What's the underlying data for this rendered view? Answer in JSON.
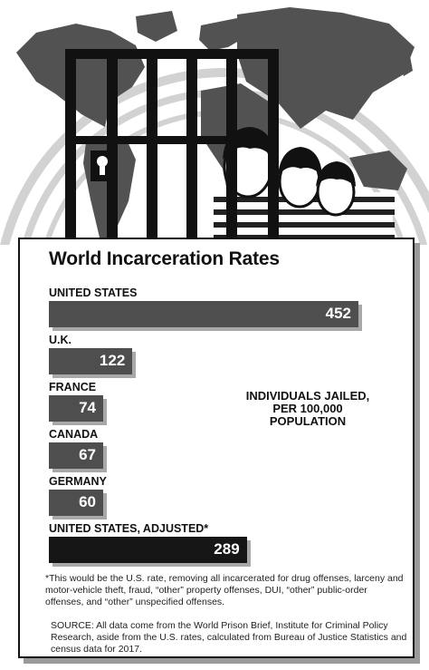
{
  "chart_data": {
    "type": "bar",
    "orientation": "horizontal",
    "title": "World Incarceration Rates",
    "unit_note": "INDIVIDUALS JAILED, PER 100,000 POPULATION",
    "categories": [
      "UNITED STATES",
      "U.K.",
      "FRANCE",
      "CANADA",
      "GERMANY",
      "UNITED STATES, ADJUSTED*"
    ],
    "values": [
      452,
      122,
      74,
      67,
      60,
      289
    ],
    "highlight_index": 5,
    "colors": {
      "bar": "#4e4e4e",
      "highlight": "#161616",
      "shadow": "#a8a8a8"
    },
    "legend": "none",
    "grid": false,
    "xlim": [
      0,
      452
    ]
  },
  "footnote": "*This would be the U.S. rate, removing all incarcerated for drug offenses, larceny and motor-vehicle theft, fraud, “other” property offenses, DUI, “other” public-order offenses, and “other” unspecified offenses.",
  "source": "SOURCE: All data come from the World Prison Brief, Institute for Criminal Policy Research, aside from the U.S. rates, calculated from Bureau of Justice Statistics and census data for 2017."
}
